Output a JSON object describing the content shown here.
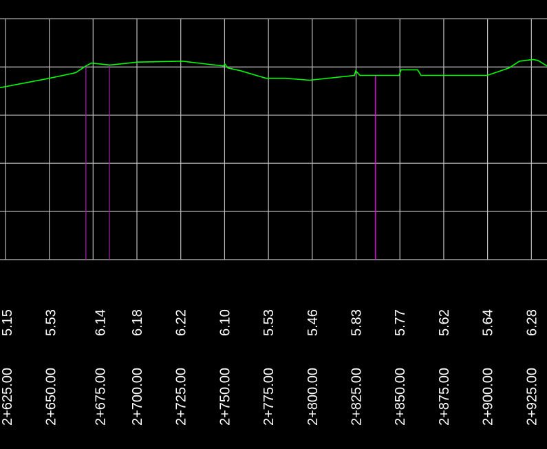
{
  "chart_data": {
    "type": "line",
    "title": "",
    "xlabel": "",
    "ylabel": "",
    "grid": true,
    "background_color": "#000000",
    "grid_color": "#bfbfbf",
    "profile_color": "#00ff00",
    "marker_colors": [
      "#a020a0",
      "#a020a0",
      "#ff00ff"
    ],
    "xlim": [
      2621.9,
      2933.9
    ],
    "ylim": [
      -2,
      8.78
    ],
    "grid_x": [
      2625,
      2650,
      2675,
      2700,
      2725,
      2750,
      2775,
      2800,
      2825,
      2850,
      2875,
      2900,
      2925
    ],
    "grid_y": [
      -2,
      0,
      2,
      4,
      6,
      8
    ],
    "stations": [
      "2+625.00",
      "2+650.00",
      "2+675.00",
      "2+700.00",
      "2+725.00",
      "2+750.00",
      "2+775.00",
      "2+800.00",
      "2+825.00",
      "2+850.00",
      "2+875.00",
      "2+900.00",
      "2+925.00"
    ],
    "elevation_labels": [
      "5.15",
      "5.53",
      "6.14",
      "6.18",
      "6.22",
      "6.10",
      "5.53",
      "5.46",
      "5.83",
      "5.77",
      "5.62",
      "5.64",
      "6.28"
    ],
    "profile": [
      [
        2621.9,
        5.14
      ],
      [
        2650,
        5.53
      ],
      [
        2665,
        5.76
      ],
      [
        2670.9,
        6.04
      ],
      [
        2674,
        6.16
      ],
      [
        2684.6,
        6.08
      ],
      [
        2700.4,
        6.2
      ],
      [
        2725.9,
        6.24
      ],
      [
        2739.6,
        6.12
      ],
      [
        2749.4,
        6.04
      ],
      [
        2750.2,
        6.12
      ],
      [
        2751.8,
        5.96
      ],
      [
        2759.2,
        5.84
      ],
      [
        2773.7,
        5.53
      ],
      [
        2784.7,
        5.53
      ],
      [
        2798.5,
        5.45
      ],
      [
        2824,
        5.65
      ],
      [
        2824.8,
        5.84
      ],
      [
        2827.2,
        5.65
      ],
      [
        2849.5,
        5.65
      ],
      [
        2850.7,
        5.88
      ],
      [
        2860.1,
        5.88
      ],
      [
        2862.1,
        5.65
      ],
      [
        2899.8,
        5.65
      ],
      [
        2912.3,
        5.96
      ],
      [
        2918.2,
        6.24
      ],
      [
        2926,
        6.31
      ],
      [
        2928.8,
        6.27
      ],
      [
        2933.9,
        6.04
      ]
    ],
    "vertical_markers": [
      2670.9,
      2684.3,
      2836.1
    ]
  }
}
